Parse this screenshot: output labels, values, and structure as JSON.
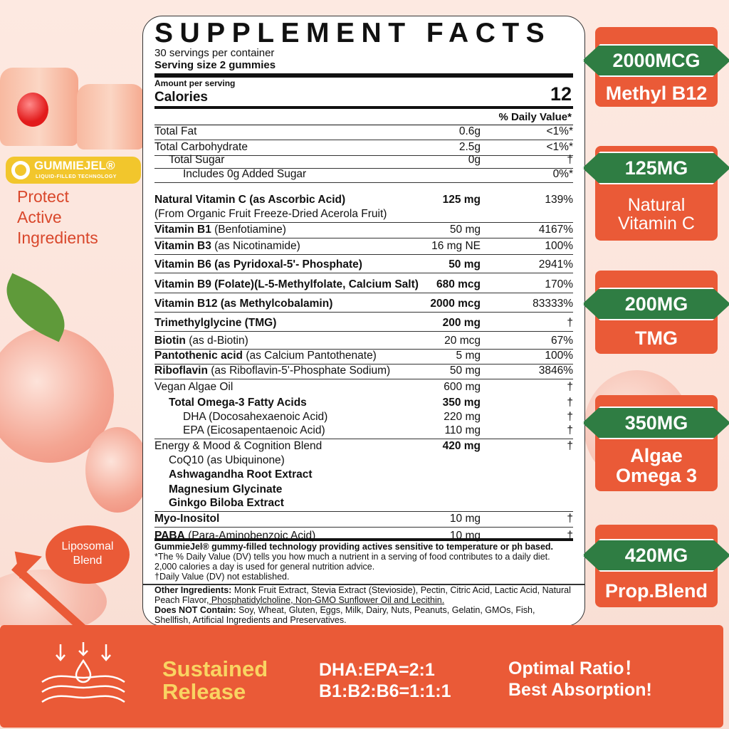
{
  "panel": {
    "title": "SUPPLEMENT FACTS",
    "servings": "30 servings per container",
    "serving_size": "Serving size 2 gummies",
    "amount_per_serving": "Amount per serving",
    "calories_label": "Calories",
    "calories_value": "12",
    "dv_header": "% Daily Value*",
    "rows": [
      {
        "bold": "",
        "name": "Total Fat",
        "amount": "0.6g",
        "dv": "<1%*",
        "indent": 0
      },
      {
        "bold": "",
        "name": "Total Carbohydrate",
        "amount": "2.5g",
        "dv": "<1%*",
        "indent": 0
      },
      {
        "bold": "",
        "name": "Total Sugar",
        "amount": "0g",
        "dv": "†",
        "indent": 1
      },
      {
        "bold": "",
        "name": "Includes 0g Added Sugar",
        "amount": "",
        "dv": "0%*",
        "indent": 2
      },
      {
        "bold": "Natural Vitamin C (as Ascorbic Acid)",
        "name": "",
        "amount": "125 mg",
        "dv": "139%",
        "indent": 0,
        "sub": "(From Organic Fruit Freeze-Dried Acerola Fruit)",
        "bamt": true
      },
      {
        "bold": "Vitamin B1",
        "name": " (Benfotiamine)",
        "amount": "50 mg",
        "dv": "4167%",
        "indent": 0
      },
      {
        "bold": "Vitamin B3",
        "name": " (as Nicotinamide)",
        "amount": "16 mg NE",
        "dv": "100%",
        "indent": 0
      },
      {
        "bold": "Vitamin B6 (as Pyridoxal-5'- Phosphate)",
        "name": "",
        "amount": "50 mg",
        "dv": "2941%",
        "indent": 0,
        "bamt": true
      },
      {
        "bold": "Vitamin B9 (Folate)(L-5-Methylfolate, Calcium Salt)",
        "name": "",
        "amount": "680 mcg",
        "dv": "170%",
        "indent": 0,
        "bamt": true
      },
      {
        "bold": "Vitamin B12 (as Methylcobalamin)",
        "name": "",
        "amount": "2000 mcg",
        "dv": "83333%",
        "indent": 0,
        "bamt": true
      },
      {
        "bold": "Trimethylglycine (TMG)",
        "name": "",
        "amount": "200 mg",
        "dv": "†",
        "indent": 0,
        "bamt": true
      },
      {
        "bold": "Biotin",
        "name": " (as d-Biotin)",
        "amount": "20 mcg",
        "dv": "67%",
        "indent": 0
      },
      {
        "bold": "Pantothenic acid",
        "name": " (as Calcium Pantothenate)",
        "amount": "5 mg",
        "dv": "100%",
        "indent": 0
      },
      {
        "bold": "Riboflavin",
        "name": " (as Riboflavin-5'-Phosphate Sodium)",
        "amount": "50 mg",
        "dv": "3846%",
        "indent": 0
      },
      {
        "bold": "",
        "name": "Vegan Algae Oil",
        "amount": "600 mg",
        "dv": "†",
        "indent": 0,
        "nob": true
      },
      {
        "bold": "Total Omega-3 Fatty Acids",
        "name": "",
        "amount": "350 mg",
        "dv": "†",
        "indent": 1,
        "nob": true,
        "bamt": true
      },
      {
        "bold": "",
        "name": "DHA (Docosahexaenoic Acid)",
        "amount": "220 mg",
        "dv": "†",
        "indent": 2,
        "nob": true
      },
      {
        "bold": "",
        "name": "EPA (Eicosapentaenoic Acid)",
        "amount": "110 mg",
        "dv": "†",
        "indent": 2
      },
      {
        "bold": "",
        "name": "Energy & Mood & Cognition Blend",
        "amount": "420 mg",
        "dv": "†",
        "indent": 0,
        "nob": true,
        "bamt": true
      },
      {
        "bold": "",
        "name": "CoQ10 (as Ubiquinone)",
        "amount": "",
        "dv": "",
        "indent": 1,
        "nob": true
      },
      {
        "bold": "Ashwagandha Root Extract",
        "name": "",
        "amount": "",
        "dv": "",
        "indent": 1,
        "nob": true
      },
      {
        "bold": "Magnesium Glycinate",
        "name": "",
        "amount": "",
        "dv": "",
        "indent": 1,
        "nob": true
      },
      {
        "bold": "Ginkgo Biloba Extract",
        "name": "",
        "amount": "",
        "dv": "",
        "indent": 1
      },
      {
        "bold": "Myo-Inositol",
        "name": "",
        "amount": "10 mg",
        "dv": "†",
        "indent": 0
      },
      {
        "bold": "PABA",
        "name": " (Para-Aminobenzoic Acid)",
        "amount": "10 mg",
        "dv": "†",
        "indent": 0,
        "nob": true
      }
    ],
    "tech_note": "GummieJel® gummy-filled technology providing actives sensitive to temperature or ph based.",
    "dv_note": "*The % Daily Value (DV) tells you how much a nutrient in a serving of food contributes to a daily diet. 2,000 calories a day is used for general nutrition advice.",
    "dagger_note": "†Daily Value (DV) not established.",
    "other_label": "Other Ingredients:",
    "other_text": " Monk Fruit Extract, Stevia Extract (Stevioside), Pectin, Citric Acid, Lactic Acid, Natural Peach Flavor,",
    "other_underlined": " Phosphatidylcholine, Non-GMO Sunflower Oil and Lecithin.",
    "not_label": "Does NOT Contain:",
    "not_text": " Soy, Wheat, Gluten, Eggs, Milk, Dairy, Nuts, Peanuts, Gelatin, GMOs, Fish, Shellfish, Artificial Ingredients and Preservatives."
  },
  "left": {
    "logo_name": "GUMMIEJEL®",
    "logo_tagline": "LIQUID-FILLED TECHNOLOGY",
    "protect": [
      "Protect",
      "Active",
      "Ingredients"
    ],
    "liposomal": [
      "Liposomal",
      "Blend"
    ]
  },
  "badges": [
    {
      "amount": "2000MCG",
      "label": [
        "Methyl B12"
      ]
    },
    {
      "amount": "125MG",
      "label": [
        "Natural",
        "Vitamin C"
      ]
    },
    {
      "amount": "200MG",
      "label": [
        "TMG"
      ]
    },
    {
      "amount": "350MG",
      "label": [
        "Algae",
        "Omega 3"
      ]
    },
    {
      "amount": "420MG",
      "label": [
        "Prop.Blend"
      ]
    }
  ],
  "band": {
    "sustained": [
      "Sustained",
      "Release"
    ],
    "ratios": [
      "DHA:EPA=2:1",
      "B1:B2:B6=1:1:1"
    ],
    "claims": [
      "Optimal Ratio！",
      "Best Absorption!"
    ]
  },
  "colors": {
    "accent": "#ea5a37",
    "green": "#2f7d43",
    "yellow": "#f9d462",
    "text_red": "#d9472b"
  }
}
